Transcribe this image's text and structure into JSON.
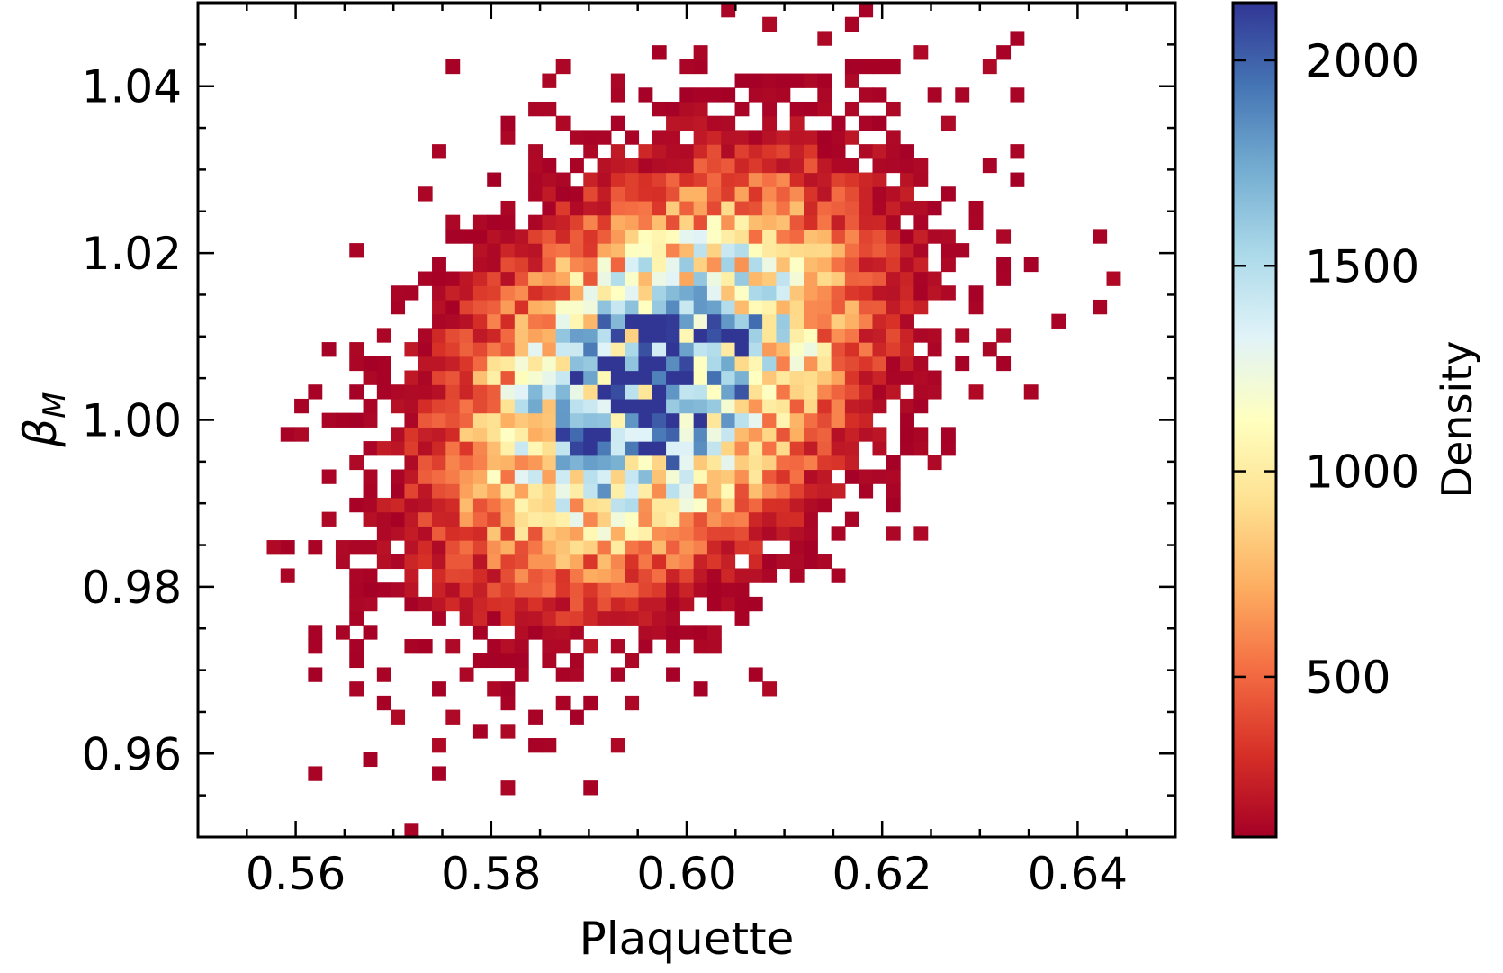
{
  "chart_data": {
    "type": "heatmap",
    "xlabel": "Plaquette",
    "ylabel_main": "β",
    "ylabel_sub": "M",
    "xlim": [
      0.55,
      0.65
    ],
    "ylim": [
      0.95,
      1.05
    ],
    "xticks": [
      0.56,
      0.58,
      0.6,
      0.62,
      0.64
    ],
    "xtick_labels": [
      "0.56",
      "0.58",
      "0.60",
      "0.62",
      "0.64"
    ],
    "yticks": [
      0.96,
      0.98,
      1.0,
      1.02,
      1.04
    ],
    "ytick_labels": [
      "0.96",
      "0.98",
      "1.00",
      "1.02",
      "1.04"
    ],
    "x_minor_step": 0.005,
    "y_minor_step": 0.005,
    "distribution": {
      "center_x": 0.5965,
      "center_y": 1.005,
      "sigma_x": 0.0125,
      "sigma_y": 0.0142,
      "correlation": 0.38,
      "peak_density": 2130,
      "bin_width_x": 0.0014,
      "bin_width_y": 0.0017
    },
    "colorbar": {
      "label": "Density",
      "min": 110,
      "max": 2140,
      "ticks": [
        500,
        1000,
        1500,
        2000
      ],
      "tick_labels": [
        "500",
        "1000",
        "1500",
        "2000"
      ],
      "colormap": "RdYlBu",
      "colors": [
        "#a50026",
        "#d73027",
        "#f46d43",
        "#fdae61",
        "#fee090",
        "#ffffbf",
        "#e0f3f8",
        "#abd9e9",
        "#74add1",
        "#4575b4",
        "#313695"
      ]
    },
    "grid": false
  }
}
